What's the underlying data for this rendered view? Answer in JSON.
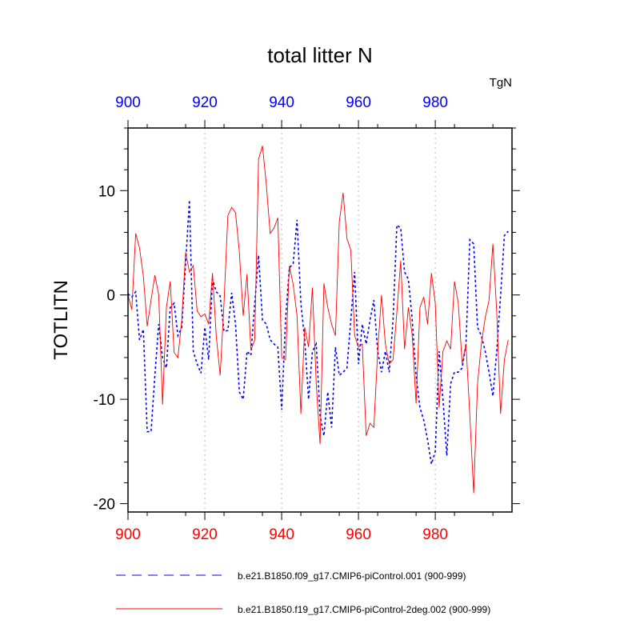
{
  "chart_data": {
    "type": "line",
    "title": "total litter N",
    "units_label": "TgN",
    "ylabel": "TOTLITN",
    "xlabel": "",
    "xlim": [
      900,
      999
    ],
    "ylim": [
      -20.8,
      16
    ],
    "x_ticks": [
      900,
      920,
      940,
      960,
      980
    ],
    "y_ticks": [
      10,
      0,
      -10,
      -20
    ],
    "grid": "vertical dotted at major x ticks",
    "bottom_axis_color": "#ff0000",
    "top_axis_color": "#0000ff",
    "legend_placement": "bottom",
    "x_start": 900,
    "series": [
      {
        "name": "b.e21.B1850.f09_g17.CMIP6-piControl.001 (900-999)",
        "color": "#0000ff",
        "style": "dashed",
        "values": [
          0.1,
          -0.2,
          0.3,
          -4.3,
          -3.3,
          -13.1,
          -13.1,
          -7.7,
          -2.8,
          -6,
          -7,
          -1.2,
          -0.8,
          -3.9,
          -3.1,
          3,
          9.1,
          -5.4,
          -6.6,
          -7.5,
          -3.1,
          -6.2,
          1.5,
          0.3,
          -0.1,
          -3.5,
          -3.4,
          0.2,
          -2.8,
          -9.3,
          -10,
          -5.4,
          -5.8,
          -0.8,
          3.8,
          -2.4,
          -2.8,
          -4.3,
          -4.7,
          -5,
          -11,
          -2.4,
          2.6,
          3,
          7.2,
          -0.8,
          -4.3,
          -10,
          -5.4,
          -4.7,
          -11.6,
          -13.5,
          -9.3,
          -12.7,
          -5,
          -7.7,
          -7.4,
          -7,
          -2.4,
          2.2,
          -6.6,
          -2.8,
          -4.7,
          -2.4,
          -0.5,
          -5.4,
          -7.4,
          -5.4,
          -7.4,
          -2.4,
          6.7,
          6.4,
          2.2,
          1.5,
          -2.4,
          -7.7,
          -10.8,
          -12,
          -13.9,
          -16.2,
          -15,
          -5.4,
          -10,
          -15.4,
          -8.5,
          -7.4,
          -7.4,
          -7,
          -4.7,
          5.3,
          4.9,
          -3.1,
          -3.9,
          -5.4,
          -7.4,
          -9.7,
          -5.4,
          -0.1,
          5.7,
          6.1
        ]
      },
      {
        "name": "b.e21.B1850.f19_g17.CMIP6-piControl-2deg.002 (900-999)",
        "color": "#ff0000",
        "style": "solid",
        "values": [
          0,
          -1.4,
          5.9,
          4.5,
          1.8,
          -3,
          -0.5,
          1.9,
          0,
          -10.5,
          -1.2,
          1.3,
          -5.5,
          -6,
          -2.4,
          4.1,
          2.2,
          2.8,
          -1.5,
          -2.1,
          -1.8,
          -2.8,
          2.1,
          -4,
          -7.7,
          -0.8,
          7.6,
          8.4,
          7.9,
          4.1,
          -2,
          2,
          -5.3,
          -4.3,
          13,
          14.3,
          10.6,
          5.9,
          6.4,
          7.4,
          -6,
          -6.2,
          2.8,
          1,
          -2,
          -11.4,
          -3.1,
          -5,
          0.7,
          -8.5,
          -14.3,
          1.1,
          -1.2,
          -2.8,
          -3.9,
          7,
          9.8,
          5.4,
          4.3,
          -3.9,
          -5,
          -4.7,
          -13.5,
          -12.3,
          -12.7,
          -5.4,
          0,
          -4.7,
          -6.6,
          -6.2,
          -1.6,
          3.3,
          -5.2,
          -1.2,
          -3.9,
          -10.4,
          -1.2,
          -0.2,
          -2.8,
          2.1,
          -0.8,
          -10.8,
          -5.4,
          -4.4,
          -5.2,
          1.3,
          -0.8,
          -6.6,
          -4.7,
          -11.6,
          -19,
          -8.5,
          -4.7,
          -2.2,
          -0.5,
          4.9,
          -1.6,
          -11.4,
          -6.2,
          -4.3
        ]
      }
    ]
  }
}
